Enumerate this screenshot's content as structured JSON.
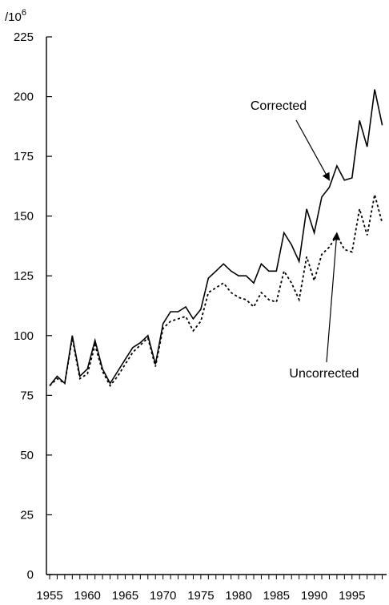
{
  "chart_data": {
    "type": "line",
    "title": "",
    "xlabel": "",
    "ylabel": "",
    "y_unit_label": "/10",
    "y_unit_exponent": "6",
    "xlim": [
      1955,
      2000
    ],
    "ylim": [
      0,
      225
    ],
    "y_ticks": [
      0,
      25,
      50,
      75,
      100,
      125,
      150,
      175,
      200,
      225
    ],
    "x_tick_labels": [
      "1955",
      "1960",
      "1965",
      "1970",
      "1975",
      "1980",
      "1985",
      "1990",
      "1995"
    ],
    "x_tick_values": [
      1955,
      1960,
      1965,
      1970,
      1975,
      1980,
      1985,
      1990,
      1995
    ],
    "grid": false,
    "legend": "none",
    "x": [
      1955,
      1956,
      1957,
      1958,
      1959,
      1960,
      1961,
      1962,
      1963,
      1964,
      1965,
      1966,
      1967,
      1968,
      1969,
      1970,
      1971,
      1972,
      1973,
      1974,
      1975,
      1976,
      1977,
      1978,
      1979,
      1980,
      1981,
      1982,
      1983,
      1984,
      1985,
      1986,
      1987,
      1988,
      1989,
      1990,
      1991,
      1992,
      1993,
      1994,
      1995,
      1996,
      1997,
      1998,
      1999
    ],
    "series": [
      {
        "name": "Corrected",
        "style": "solid",
        "color": "#000000",
        "values": [
          79,
          83,
          80,
          100,
          83,
          86,
          98,
          86,
          80,
          85,
          90,
          95,
          97,
          100,
          88,
          105,
          110,
          110,
          112,
          107,
          111,
          124,
          127,
          130,
          127,
          125,
          125,
          122,
          130,
          127,
          127,
          143,
          138,
          131,
          153,
          143,
          158,
          162,
          171,
          165,
          166,
          190,
          179,
          203,
          188
        ]
      },
      {
        "name": "Uncorrected",
        "style": "dotted",
        "color": "#000000",
        "values": [
          79,
          82,
          80,
          99,
          82,
          84,
          96,
          85,
          79,
          83,
          88,
          93,
          96,
          99,
          87,
          103,
          106,
          107,
          108,
          102,
          106,
          118,
          120,
          122,
          118,
          116,
          115,
          112,
          118,
          115,
          114,
          127,
          122,
          115,
          133,
          123,
          134,
          137,
          142,
          136,
          135,
          153,
          142,
          159,
          147
        ]
      }
    ],
    "annotations": [
      {
        "text": "Corrected",
        "points_to": {
          "x": 1992,
          "y": 165
        }
      },
      {
        "text": "Uncorrected",
        "points_to": {
          "x": 1993,
          "y": 143
        }
      }
    ]
  }
}
